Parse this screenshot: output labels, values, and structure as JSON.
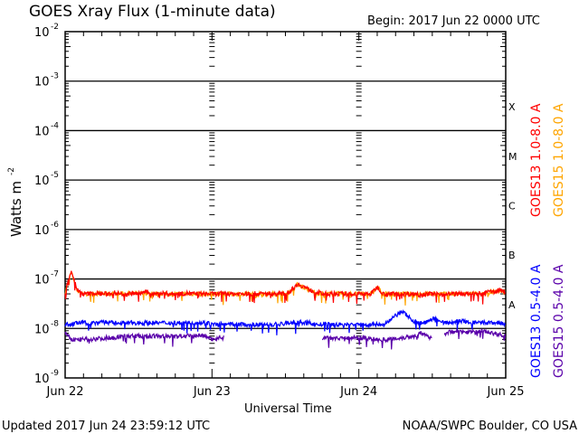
{
  "chart_data": {
    "type": "line",
    "title": "GOES Xray Flux (1-minute data)",
    "begin_label": "Begin:  2017 Jun 22 0000 UTC",
    "xlabel": "Universal Time",
    "ylabel": "Watts m",
    "ylabel_exp": "-2",
    "yscale": "log",
    "ylim": [
      1e-09,
      0.01
    ],
    "xlim_hours": [
      0,
      72
    ],
    "x_ticks": [
      {
        "hour": 0,
        "label": "Jun 22"
      },
      {
        "hour": 24,
        "label": "Jun 23"
      },
      {
        "hour": 48,
        "label": "Jun 24"
      },
      {
        "hour": 72,
        "label": "Jun 25"
      }
    ],
    "y_ticks": [
      {
        "exp": -2,
        "label": "10",
        "sup": "-2"
      },
      {
        "exp": -3,
        "label": "10",
        "sup": "-3"
      },
      {
        "exp": -4,
        "label": "10",
        "sup": "-4"
      },
      {
        "exp": -5,
        "label": "10",
        "sup": "-5"
      },
      {
        "exp": -6,
        "label": "10",
        "sup": "-6"
      },
      {
        "exp": -7,
        "label": "10",
        "sup": "-7"
      },
      {
        "exp": -8,
        "label": "10",
        "sup": "-8"
      },
      {
        "exp": -9,
        "label": "10",
        "sup": "-9"
      }
    ],
    "flare_classes": [
      {
        "label": "X",
        "exp": -3.5
      },
      {
        "label": "M",
        "exp": -4.5
      },
      {
        "label": "C",
        "exp": -5.5
      },
      {
        "label": "B",
        "exp": -6.5
      },
      {
        "label": "A",
        "exp": -7.5
      }
    ],
    "x_hours": "hourly samples 0..72",
    "series": [
      {
        "name": "GOES15 1.0-8.0 A",
        "color": "#ffa500",
        "values": [
          5.3e-08,
          1.4e-07,
          5.8e-08,
          5e-08,
          5e-08,
          5.1e-08,
          5e-08,
          5e-08,
          5.2e-08,
          5e-08,
          5e-08,
          5.1e-08,
          5e-08,
          5.3e-08,
          5e-08,
          5e-08,
          5.1e-08,
          5e-08,
          5e-08,
          5e-08,
          5.1e-08,
          5e-08,
          5e-08,
          5e-08,
          5e-08,
          5e-08,
          5e-08,
          5e-08,
          5e-08,
          5e-08,
          5e-08,
          5e-08,
          5e-08,
          5e-08,
          5e-08,
          5e-08,
          5e-08,
          5.8e-08,
          7.8e-08,
          6.8e-08,
          5.8e-08,
          5.3e-08,
          5e-08,
          5e-08,
          5e-08,
          5e-08,
          5e-08,
          5e-08,
          5e-08,
          5e-08,
          5e-08,
          6.8e-08,
          5e-08,
          5e-08,
          5e-08,
          5e-08,
          5e-08,
          5e-08,
          5e-08,
          5e-08,
          5e-08,
          5e-08,
          5e-08,
          5e-08,
          5e-08,
          5e-08,
          5e-08,
          5e-08,
          5e-08,
          5.3e-08,
          5.5e-08,
          5.8e-08,
          5.5e-08
        ]
      },
      {
        "name": "GOES13 1.0-8.0 A",
        "color": "#ff0000",
        "values": [
          5.5e-08,
          1.5e-07,
          6e-08,
          5e-08,
          5e-08,
          5.2e-08,
          5e-08,
          5e-08,
          5.3e-08,
          5e-08,
          5e-08,
          5.2e-08,
          5e-08,
          5.5e-08,
          5e-08,
          5e-08,
          5.2e-08,
          5e-08,
          5e-08,
          5e-08,
          5.2e-08,
          5e-08,
          5e-08,
          5e-08,
          5e-08,
          5e-08,
          5.1e-08,
          5e-08,
          5e-08,
          5e-08,
          5e-08,
          5.1e-08,
          5e-08,
          5e-08,
          5e-08,
          5e-08,
          5e-08,
          6e-08,
          8e-08,
          7e-08,
          6e-08,
          5.5e-08,
          5e-08,
          5e-08,
          5e-08,
          5e-08,
          5e-08,
          5e-08,
          5e-08,
          5e-08,
          5e-08,
          7e-08,
          5e-08,
          5e-08,
          5e-08,
          5e-08,
          5e-08,
          5e-08,
          5e-08,
          5e-08,
          5e-08,
          5e-08,
          5e-08,
          5e-08,
          5e-08,
          5e-08,
          5e-08,
          5e-08,
          5e-08,
          5.5e-08,
          5.5e-08,
          6e-08,
          5.5e-08
        ]
      },
      {
        "name": "GOES13 0.5-4.0 A",
        "color": "#0000ff",
        "values": [
          1.2e-08,
          1.2e-08,
          1.3e-08,
          1.3e-08,
          1.3e-08,
          1.3e-08,
          1.4e-08,
          1.3e-08,
          1.3e-08,
          1.3e-08,
          1.3e-08,
          1.3e-08,
          1.3e-08,
          1.3e-08,
          1.3e-08,
          1.3e-08,
          1.3e-08,
          1.3e-08,
          1.3e-08,
          1.3e-08,
          1.3e-08,
          1.3e-08,
          1.3e-08,
          1.3e-08,
          1.2e-08,
          1.2e-08,
          1.2e-08,
          1.2e-08,
          1.2e-08,
          1.2e-08,
          1.2e-08,
          1.2e-08,
          1.2e-08,
          1.2e-08,
          1.2e-08,
          1.2e-08,
          1.3e-08,
          1.3e-08,
          1.3e-08,
          1.3e-08,
          1.3e-08,
          1.2e-08,
          1.2e-08,
          1.2e-08,
          1.2e-08,
          1.2e-08,
          1.2e-08,
          1.2e-08,
          1.2e-08,
          1.2e-08,
          1.2e-08,
          1.2e-08,
          1.2e-08,
          1.4e-08,
          1.8e-08,
          2.2e-08,
          1.8e-08,
          1.4e-08,
          1.3e-08,
          1.3e-08,
          1.6e-08,
          1.5e-08,
          1.3e-08,
          1.3e-08,
          1.4e-08,
          1.4e-08,
          1.3e-08,
          1.3e-08,
          1.3e-08,
          1.3e-08,
          1.3e-08,
          1.3e-08,
          1.2e-08
        ]
      },
      {
        "name": "GOES15 0.5-4.0 A",
        "color": "#5a00aa",
        "values": [
          8e-09,
          6e-09,
          6e-09,
          6e-09,
          6e-09,
          6.2e-09,
          6.3e-09,
          6.5e-09,
          6.5e-09,
          7e-09,
          7e-09,
          7e-09,
          7e-09,
          7e-09,
          7e-09,
          7e-09,
          7e-09,
          7e-09,
          7e-09,
          7e-09,
          7e-09,
          7e-09,
          7.3e-09,
          7e-09,
          6e-09,
          6.5e-09,
          6.5e-09,
          null,
          null,
          null,
          null,
          null,
          null,
          null,
          null,
          null,
          null,
          null,
          null,
          null,
          null,
          null,
          6.5e-09,
          6.5e-09,
          6.5e-09,
          6.5e-09,
          6.5e-09,
          6.5e-09,
          6.5e-09,
          6.5e-09,
          6.2e-09,
          6e-09,
          6e-09,
          6e-09,
          6.3e-09,
          6.5e-09,
          6.8e-09,
          7e-09,
          8e-09,
          7e-09,
          6.5e-09,
          null,
          8e-09,
          8.5e-09,
          9e-09,
          8.5e-09,
          8.5e-09,
          8.5e-09,
          9e-09,
          8.5e-09,
          8e-09,
          7.5e-09,
          7e-09
        ]
      }
    ],
    "legend": [
      {
        "label": "GOES13 1.0-8.0 A",
        "color": "#ff0000"
      },
      {
        "label": "GOES15 1.0-8.0 A",
        "color": "#ffa500"
      },
      {
        "label": "GOES13 0.5-4.0 A",
        "color": "#0000ff"
      },
      {
        "label": "GOES15 0.5-4.0 A",
        "color": "#5a00aa"
      }
    ],
    "legend_placement": "right",
    "grid": "horizontal at decades 1e-3..1e-8"
  },
  "footer": {
    "updated": "Updated 2017 Jun 24 23:59:12 UTC",
    "credit": "NOAA/SWPC Boulder, CO USA"
  }
}
